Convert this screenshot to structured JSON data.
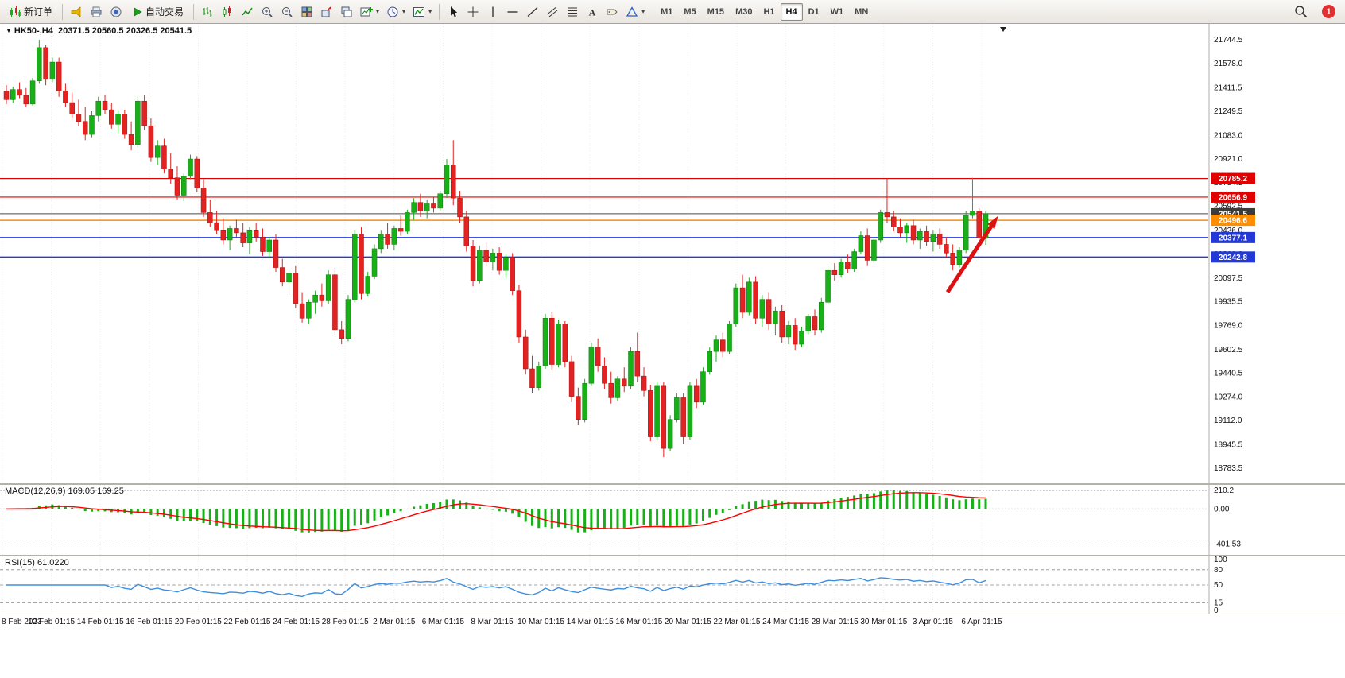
{
  "toolbar": {
    "new_order": "新订单",
    "auto_trading": "自动交易",
    "notification_count": "1",
    "timeframes": [
      {
        "label": "M1",
        "active": false
      },
      {
        "label": "M5",
        "active": false
      },
      {
        "label": "M15",
        "active": false
      },
      {
        "label": "M30",
        "active": false
      },
      {
        "label": "H1",
        "active": false
      },
      {
        "label": "H4",
        "active": true
      },
      {
        "label": "D1",
        "active": false
      },
      {
        "label": "W1",
        "active": false
      },
      {
        "label": "MN",
        "active": false
      }
    ]
  },
  "chart": {
    "header_symbol": "HK50-,H4",
    "header_ohlc": "20371.5 20560.5 20326.5 20541.5",
    "price_scale": [
      "21744.5",
      "21578.0",
      "21411.5",
      "21249.5",
      "21083.0",
      "20921.0",
      "20754.5",
      "20592.5",
      "20426.0",
      "20260.0",
      "20097.5",
      "19935.5",
      "19769.0",
      "19602.5",
      "19440.5",
      "19274.0",
      "19112.0",
      "18945.5",
      "18783.5"
    ],
    "levels": [
      {
        "price": 20785.2,
        "label": "20785.2",
        "color": "#e00000",
        "width": 1.2
      },
      {
        "price": 20656.9,
        "label": "20656.9",
        "color": "#e00000",
        "width": 1.2
      },
      {
        "price": 20541.5,
        "label": "20541.5",
        "color": "#4a4a4a",
        "width": 1,
        "badge": "#3c3c3c"
      },
      {
        "price": 20496.6,
        "label": "20496.6",
        "color": "#ff8d00",
        "width": 1.5
      },
      {
        "price": 20377.1,
        "label": "20377.1",
        "color": "#2239d8",
        "width": 1.5
      },
      {
        "price": 20242.8,
        "label": "20242.8",
        "color": "#2239d8",
        "width": 1.5
      }
    ],
    "time_labels": [
      "8 Feb 2023",
      "10 Feb 01:15",
      "14 Feb 01:15",
      "16 Feb 01:15",
      "20 Feb 01:15",
      "22 Feb 01:15",
      "24 Feb 01:15",
      "28 Feb 01:15",
      "2 Mar 01:15",
      "6 Mar 01:15",
      "8 Mar 01:15",
      "10 Mar 01:15",
      "14 Mar 01:15",
      "16 Mar 01:15",
      "20 Mar 01:15",
      "22 Mar 01:15",
      "24 Mar 01:15",
      "28 Mar 01:15",
      "30 Mar 01:15",
      "3 Apr 01:15",
      "6 Apr 01:15"
    ]
  },
  "macd": {
    "label": "MACD(12,26,9) 169.05 169.25",
    "scale_labels": [
      "210.2",
      "0.00",
      "-401.53"
    ],
    "scale_values": [
      210.2,
      0,
      -401.53
    ]
  },
  "rsi": {
    "label": "RSI(15) 61.0220",
    "scale_labels": [
      "100",
      "80",
      "50",
      "15",
      "0"
    ],
    "scale_values": [
      100,
      80,
      50,
      15,
      0
    ],
    "level_lines": [
      80,
      50,
      15
    ]
  },
  "annotation": {
    "type": "arrow",
    "color": "#dd1111",
    "from": {
      "x": 1192,
      "price": 20000
    },
    "to": {
      "x": 1250,
      "price": 20480
    }
  },
  "chart_data": {
    "type": "candlestick",
    "symbol": "HK50-",
    "timeframe": "H4",
    "ohlc_current": {
      "open": 20371.5,
      "high": 20560.5,
      "low": 20326.5,
      "close": 20541.5
    },
    "y_range": [
      18745,
      21810
    ],
    "colors": {
      "up": "#17b017",
      "down": "#e32222",
      "macd_hist": "#17b017",
      "macd_signal": "#ff0000",
      "rsi": "#3e8ede"
    },
    "candles": [
      [
        21390,
        21430,
        21300,
        21330
      ],
      [
        21330,
        21420,
        21310,
        21400
      ],
      [
        21400,
        21450,
        21340,
        21360
      ],
      [
        21360,
        21410,
        21280,
        21300
      ],
      [
        21300,
        21480,
        21290,
        21460
      ],
      [
        21460,
        21744,
        21440,
        21690
      ],
      [
        21690,
        21710,
        21430,
        21470
      ],
      [
        21470,
        21620,
        21450,
        21590
      ],
      [
        21590,
        21620,
        21350,
        21390
      ],
      [
        21390,
        21440,
        21280,
        21310
      ],
      [
        21310,
        21380,
        21200,
        21230
      ],
      [
        21230,
        21330,
        21150,
        21180
      ],
      [
        21180,
        21280,
        21050,
        21090
      ],
      [
        21090,
        21250,
        21070,
        21220
      ],
      [
        21220,
        21350,
        21180,
        21320
      ],
      [
        21320,
        21360,
        21230,
        21260
      ],
      [
        21260,
        21310,
        21130,
        21160
      ],
      [
        21160,
        21250,
        21100,
        21230
      ],
      [
        21230,
        21260,
        21060,
        21090
      ],
      [
        21090,
        21180,
        20980,
        21020
      ],
      [
        21020,
        21350,
        21000,
        21320
      ],
      [
        21320,
        21360,
        21120,
        21150
      ],
      [
        21150,
        21200,
        20900,
        20930
      ],
      [
        20930,
        21050,
        20880,
        21010
      ],
      [
        21010,
        21060,
        20820,
        20850
      ],
      [
        20850,
        20960,
        20750,
        20790
      ],
      [
        20790,
        20870,
        20640,
        20670
      ],
      [
        20670,
        20820,
        20630,
        20800
      ],
      [
        20800,
        20950,
        20780,
        20920
      ],
      [
        20920,
        20940,
        20690,
        20720
      ],
      [
        20720,
        20780,
        20520,
        20550
      ],
      [
        20550,
        20640,
        20450,
        20480
      ],
      [
        20480,
        20560,
        20400,
        20430
      ],
      [
        20430,
        20510,
        20330,
        20360
      ],
      [
        20360,
        20460,
        20290,
        20440
      ],
      [
        20440,
        20500,
        20380,
        20410
      ],
      [
        20410,
        20480,
        20310,
        20340
      ],
      [
        20340,
        20450,
        20260,
        20430
      ],
      [
        20430,
        20480,
        20350,
        20380
      ],
      [
        20380,
        20440,
        20250,
        20280
      ],
      [
        20280,
        20380,
        20240,
        20360
      ],
      [
        20360,
        20400,
        20140,
        20170
      ],
      [
        20170,
        20230,
        20040,
        20070
      ],
      [
        20070,
        20160,
        19980,
        20130
      ],
      [
        20130,
        20180,
        19890,
        19920
      ],
      [
        19920,
        20000,
        19790,
        19820
      ],
      [
        19820,
        19950,
        19780,
        19930
      ],
      [
        19930,
        20010,
        19850,
        19980
      ],
      [
        19980,
        20060,
        19900,
        19940
      ],
      [
        19940,
        20150,
        19920,
        20120
      ],
      [
        20120,
        20170,
        19700,
        19740
      ],
      [
        19740,
        19800,
        19640,
        19680
      ],
      [
        19680,
        19980,
        19660,
        19950
      ],
      [
        19950,
        20430,
        19930,
        20400
      ],
      [
        20400,
        20450,
        19950,
        19990
      ],
      [
        19990,
        20140,
        19970,
        20110
      ],
      [
        20110,
        20330,
        20090,
        20300
      ],
      [
        20300,
        20430,
        20270,
        20400
      ],
      [
        20400,
        20480,
        20300,
        20330
      ],
      [
        20330,
        20460,
        20290,
        20440
      ],
      [
        20440,
        20530,
        20390,
        20420
      ],
      [
        20420,
        20570,
        20400,
        20550
      ],
      [
        20550,
        20650,
        20500,
        20620
      ],
      [
        20620,
        20680,
        20520,
        20560
      ],
      [
        20560,
        20640,
        20510,
        20610
      ],
      [
        20610,
        20660,
        20550,
        20580
      ],
      [
        20580,
        20700,
        20560,
        20680
      ],
      [
        20680,
        20920,
        20650,
        20880
      ],
      [
        20880,
        21050,
        20600,
        20650
      ],
      [
        20650,
        20700,
        20480,
        20520
      ],
      [
        20520,
        20560,
        20280,
        20320
      ],
      [
        20320,
        20360,
        20040,
        20080
      ],
      [
        20080,
        20320,
        20060,
        20290
      ],
      [
        20290,
        20340,
        20180,
        20210
      ],
      [
        20210,
        20300,
        20150,
        20270
      ],
      [
        20270,
        20310,
        20120,
        20150
      ],
      [
        20150,
        20260,
        20100,
        20240
      ],
      [
        20240,
        20270,
        19980,
        20010
      ],
      [
        20010,
        20050,
        19650,
        19690
      ],
      [
        19690,
        19740,
        19430,
        19470
      ],
      [
        19470,
        19560,
        19300,
        19340
      ],
      [
        19340,
        19520,
        19320,
        19490
      ],
      [
        19490,
        19850,
        19470,
        19820
      ],
      [
        19820,
        19860,
        19460,
        19500
      ],
      [
        19500,
        19810,
        19480,
        19780
      ],
      [
        19780,
        19800,
        19480,
        19520
      ],
      [
        19520,
        19560,
        19240,
        19280
      ],
      [
        19280,
        19340,
        19080,
        19120
      ],
      [
        19120,
        19400,
        19100,
        19370
      ],
      [
        19370,
        19650,
        19350,
        19620
      ],
      [
        19620,
        19680,
        19450,
        19490
      ],
      [
        19490,
        19550,
        19330,
        19370
      ],
      [
        19370,
        19450,
        19230,
        19270
      ],
      [
        19270,
        19420,
        19250,
        19400
      ],
      [
        19400,
        19480,
        19310,
        19350
      ],
      [
        19350,
        19620,
        19330,
        19590
      ],
      [
        19590,
        19720,
        19380,
        19420
      ],
      [
        19420,
        19480,
        19280,
        19320
      ],
      [
        19320,
        19360,
        18970,
        19000
      ],
      [
        19000,
        19380,
        18980,
        19350
      ],
      [
        19350,
        19380,
        18860,
        18920
      ],
      [
        18920,
        19150,
        18900,
        19120
      ],
      [
        19120,
        19300,
        19100,
        19270
      ],
      [
        19270,
        19300,
        18950,
        19000
      ],
      [
        19000,
        19380,
        18980,
        19350
      ],
      [
        19350,
        19400,
        19200,
        19240
      ],
      [
        19240,
        19480,
        19220,
        19450
      ],
      [
        19450,
        19620,
        19430,
        19590
      ],
      [
        19590,
        19700,
        19520,
        19670
      ],
      [
        19670,
        19720,
        19550,
        19590
      ],
      [
        19590,
        19800,
        19570,
        19780
      ],
      [
        19780,
        20060,
        19760,
        20030
      ],
      [
        20030,
        20120,
        19820,
        19860
      ],
      [
        19860,
        20100,
        19840,
        20070
      ],
      [
        20070,
        20110,
        19780,
        19820
      ],
      [
        19820,
        19980,
        19760,
        19950
      ],
      [
        19950,
        20000,
        19740,
        19780
      ],
      [
        19780,
        19900,
        19700,
        19870
      ],
      [
        19870,
        19910,
        19650,
        19690
      ],
      [
        19690,
        19800,
        19640,
        19770
      ],
      [
        19770,
        19820,
        19600,
        19640
      ],
      [
        19640,
        19760,
        19620,
        19730
      ],
      [
        19730,
        19850,
        19710,
        19830
      ],
      [
        19830,
        19880,
        19700,
        19740
      ],
      [
        19740,
        19960,
        19720,
        19930
      ],
      [
        19930,
        20180,
        19910,
        20150
      ],
      [
        20150,
        20200,
        20080,
        20120
      ],
      [
        20120,
        20230,
        20100,
        20210
      ],
      [
        20210,
        20260,
        20130,
        20160
      ],
      [
        20160,
        20300,
        20140,
        20280
      ],
      [
        20280,
        20420,
        20260,
        20390
      ],
      [
        20390,
        20440,
        20180,
        20220
      ],
      [
        20220,
        20380,
        20200,
        20360
      ],
      [
        20360,
        20570,
        20340,
        20550
      ],
      [
        20550,
        20785,
        20480,
        20520
      ],
      [
        20520,
        20560,
        20420,
        20450
      ],
      [
        20450,
        20510,
        20380,
        20410
      ],
      [
        20410,
        20480,
        20340,
        20460
      ],
      [
        20460,
        20500,
        20330,
        20360
      ],
      [
        20360,
        20440,
        20300,
        20420
      ],
      [
        20420,
        20460,
        20320,
        20350
      ],
      [
        20350,
        20430,
        20280,
        20400
      ],
      [
        20400,
        20440,
        20300,
        20330
      ],
      [
        20330,
        20380,
        20240,
        20270
      ],
      [
        20270,
        20330,
        20150,
        20190
      ],
      [
        20190,
        20310,
        20170,
        20290
      ],
      [
        20290,
        20560,
        20270,
        20530
      ],
      [
        20530,
        20790,
        20510,
        20560
      ],
      [
        20560,
        20580,
        20340,
        20375
      ],
      [
        20371.5,
        20560.5,
        20326.5,
        20541.5
      ]
    ]
  }
}
